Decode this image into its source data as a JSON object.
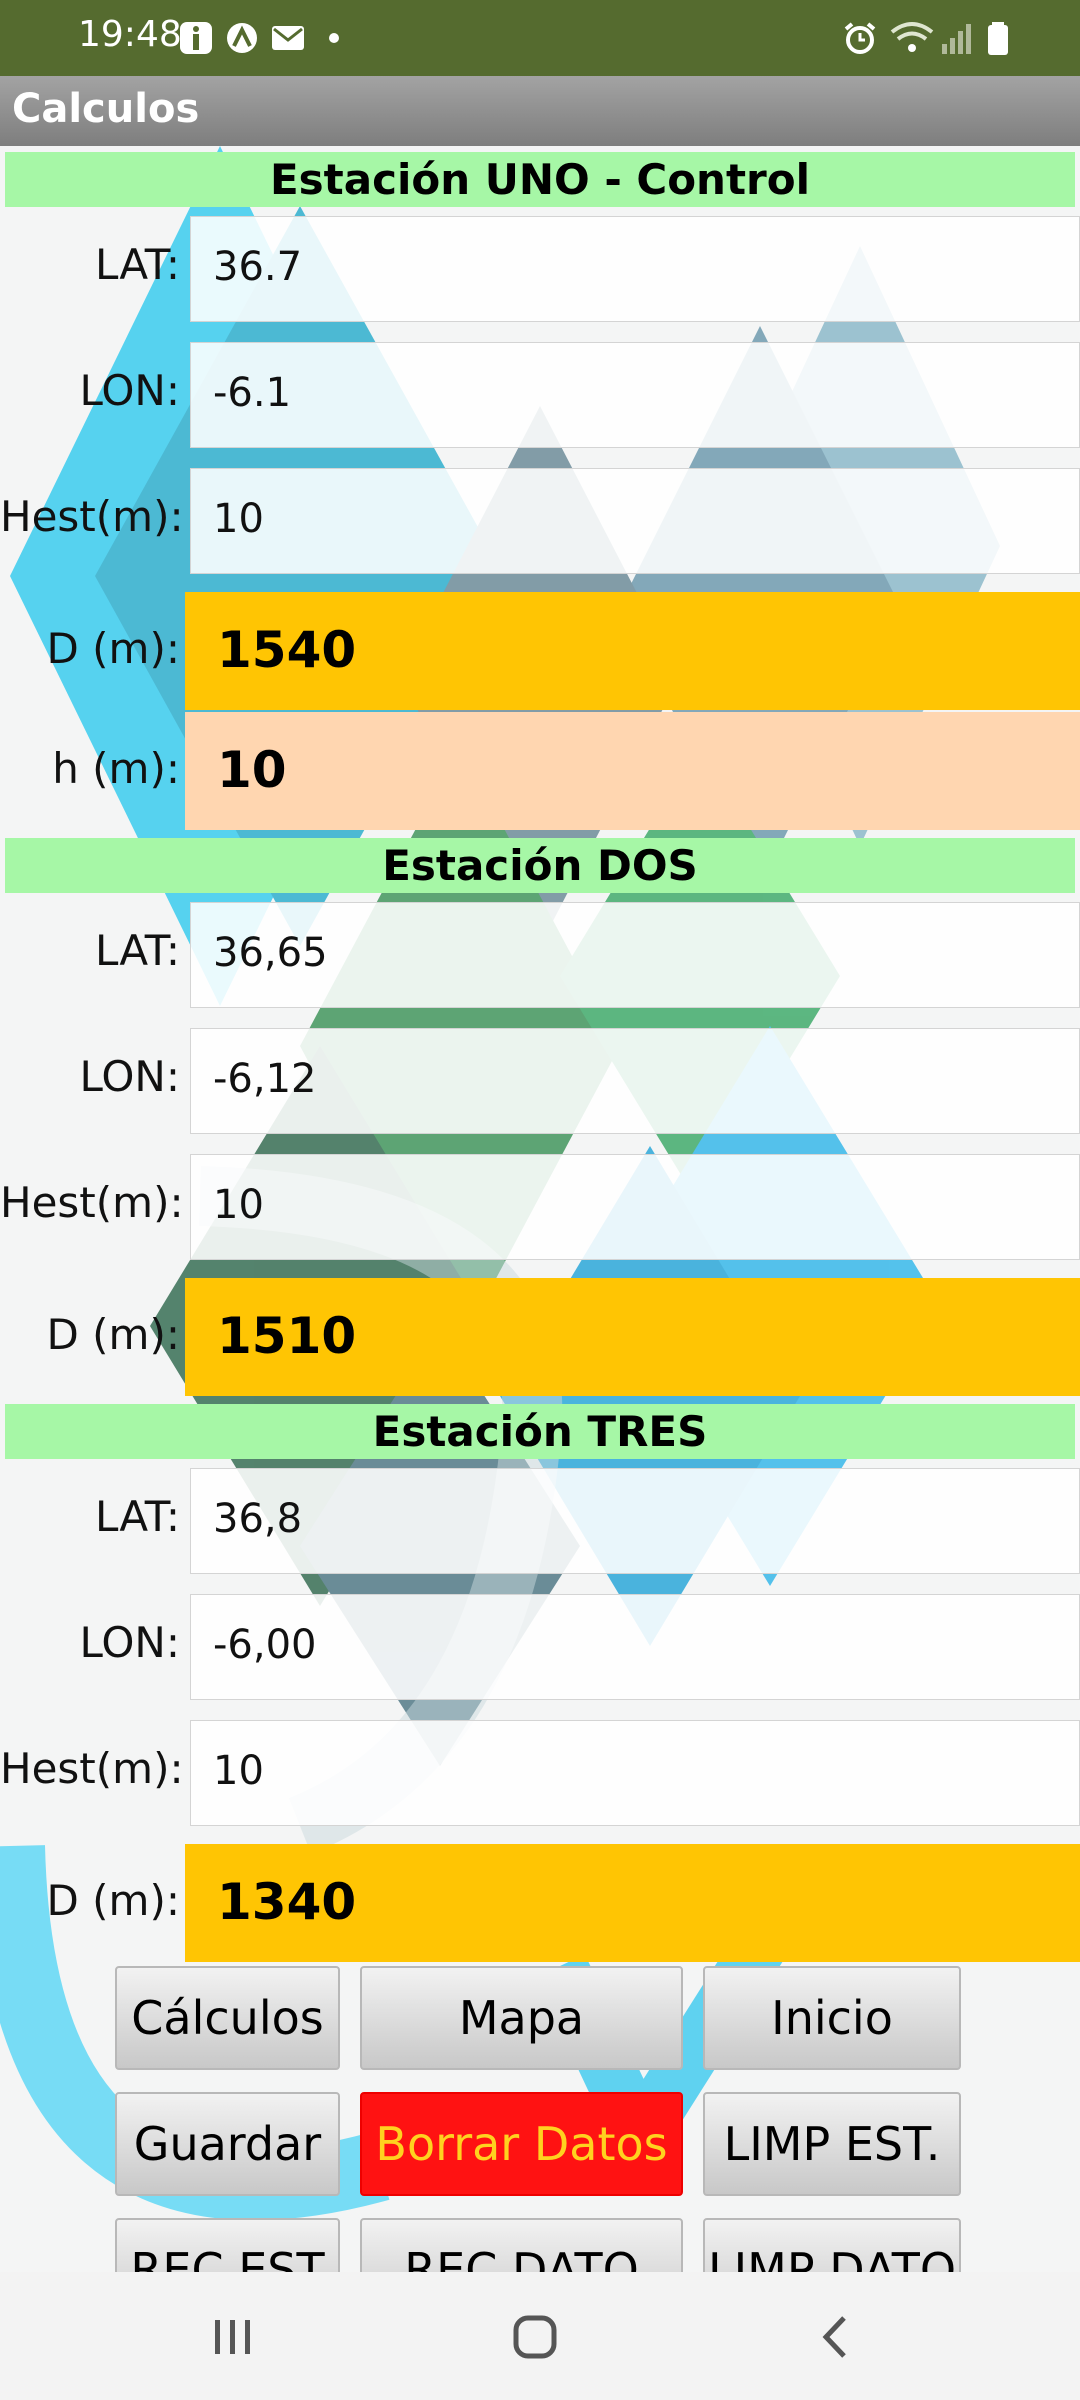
{
  "status_bar": {
    "time": "19:48"
  },
  "app_bar": {
    "title": "Calculos"
  },
  "sections": [
    {
      "header": "Estación UNO - Control",
      "lat_label": "LAT:",
      "lat_value": "36.7",
      "lon_label": "LON:",
      "lon_value": "-6.1",
      "hest_label": "Hest(m):",
      "hest_value": "10",
      "d_label": "D (m):",
      "d_value": "1540",
      "h_label": "h (m):",
      "h_value": "10"
    },
    {
      "header": "Estación DOS",
      "lat_label": "LAT:",
      "lat_value": "36,65",
      "lon_label": "LON:",
      "lon_value": "-6,12",
      "hest_label": "Hest(m):",
      "hest_value": "10",
      "d_label": "D (m):",
      "d_value": "1510"
    },
    {
      "header": "Estación TRES",
      "lat_label": "LAT:",
      "lat_value": "36,8",
      "lon_label": "LON:",
      "lon_value": "-6,00",
      "hest_label": "Hest(m):",
      "hest_value": "10",
      "d_label": "D (m):",
      "d_value": "1340"
    }
  ],
  "buttons": {
    "calculos": "Cálculos",
    "mapa": "Mapa",
    "inicio": "Inicio",
    "guardar": "Guardar",
    "borrar_datos": "Borrar Datos",
    "limp_est": "LIMP EST.",
    "rec_est": "REC EST",
    "rec_dato": "REC DATO",
    "limp_dato": "LIMP DATO"
  },
  "colors": {
    "status_bar": "#556b2f",
    "section_header": "#a6f7a6",
    "result_yellow": "#ffc503",
    "result_peach": "#ffd6b0",
    "delete_button": "#ff1212",
    "delete_button_text": "#ffd21f"
  },
  "icons": {
    "status_left": [
      "info-icon",
      "settings-app-icon",
      "email-icon",
      "dot-icon"
    ],
    "status_right": [
      "alarm-icon",
      "wifi-icon",
      "signal-icon",
      "battery-icon"
    ],
    "nav": [
      "recent-apps-icon",
      "home-icon",
      "back-icon"
    ]
  }
}
